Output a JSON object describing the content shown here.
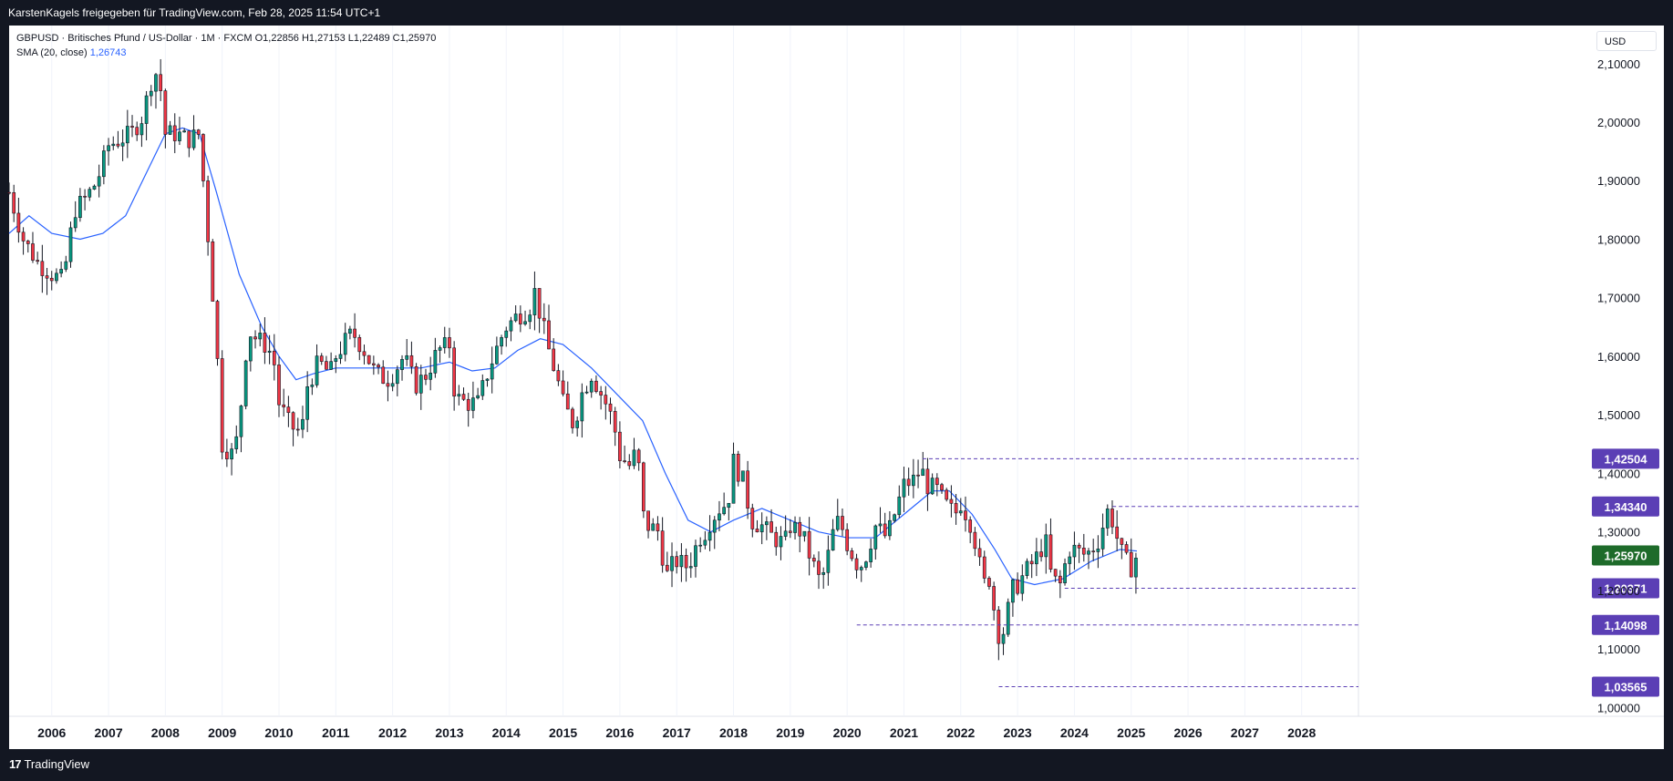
{
  "header": {
    "title": "KarstenKagels freigegeben für TradingView.com, Feb 28, 2025 11:54 UTC+1"
  },
  "legend": {
    "line1": "GBPUSD · Britisches Pfund / US-Dollar · 1M · FXCM  O1,22856  H1,27153  L1,22489  C1,25970",
    "sma_label": "SMA (20, close)",
    "sma_value": "1,26743"
  },
  "currency_label": "USD",
  "footer": {
    "logo_text": "TradingView",
    "logo_mark": "17"
  },
  "colors": {
    "up": "#089981",
    "down": "#f23645",
    "sma": "#2962ff",
    "level": "#5b3fb5",
    "last": "#1e6b2a"
  },
  "chart_data": {
    "type": "candlestick",
    "symbol": "GBPUSD",
    "interval": "1M",
    "ylim": [
      0.985,
      2.165
    ],
    "xlim": [
      2005.25,
      2029.0
    ],
    "y_ticks": [
      "2,10000",
      "2,00000",
      "1,90000",
      "1,80000",
      "1,70000",
      "1,60000",
      "1,50000",
      "1,40000",
      "1,30000",
      "1,20000",
      "1,10000",
      "1,00000"
    ],
    "x_ticks": [
      "2006",
      "2007",
      "2008",
      "2009",
      "2010",
      "2011",
      "2012",
      "2013",
      "2014",
      "2015",
      "2016",
      "2017",
      "2018",
      "2019",
      "2020",
      "2021",
      "2022",
      "2023",
      "2024",
      "2025",
      "2026",
      "2027",
      "2028"
    ],
    "last_price": "1,25970",
    "levels": [
      {
        "value": 1.42504,
        "label": "1,42504",
        "from": 2021.33
      },
      {
        "value": 1.3434,
        "label": "1,34340",
        "from": 2024.67
      },
      {
        "value": 1.20371,
        "label": "1,20371",
        "from": 2023.83
      },
      {
        "value": 1.14098,
        "label": "1,14098",
        "from": 2020.17
      },
      {
        "value": 1.03565,
        "label": "1,03565",
        "from": 2022.67
      }
    ],
    "closes": [
      [
        2005.25,
        1.88
      ],
      [
        2005.5,
        1.8
      ],
      [
        2005.75,
        1.76
      ],
      [
        2006.0,
        1.74
      ],
      [
        2006.2,
        1.73
      ],
      [
        2006.4,
        1.85
      ],
      [
        2006.6,
        1.87
      ],
      [
        2006.8,
        1.9
      ],
      [
        2007.0,
        1.96
      ],
      [
        2007.2,
        1.97
      ],
      [
        2007.4,
        1.98
      ],
      [
        2007.6,
        2.01
      ],
      [
        2007.8,
        2.09
      ],
      [
        2007.9,
        2.07
      ],
      [
        2008.0,
        1.98
      ],
      [
        2008.2,
        1.98
      ],
      [
        2008.4,
        1.97
      ],
      [
        2008.6,
        1.98
      ],
      [
        2008.7,
        1.86
      ],
      [
        2008.8,
        1.75
      ],
      [
        2008.9,
        1.62
      ],
      [
        2009.0,
        1.45
      ],
      [
        2009.2,
        1.43
      ],
      [
        2009.3,
        1.48
      ],
      [
        2009.4,
        1.6
      ],
      [
        2009.5,
        1.64
      ],
      [
        2009.6,
        1.63
      ],
      [
        2009.75,
        1.62
      ],
      [
        2009.9,
        1.6
      ],
      [
        2010.0,
        1.52
      ],
      [
        2010.2,
        1.48
      ],
      [
        2010.4,
        1.47
      ],
      [
        2010.5,
        1.55
      ],
      [
        2010.7,
        1.59
      ],
      [
        2010.9,
        1.57
      ],
      [
        2011.0,
        1.6
      ],
      [
        2011.2,
        1.63
      ],
      [
        2011.3,
        1.64
      ],
      [
        2011.5,
        1.61
      ],
      [
        2011.7,
        1.57
      ],
      [
        2011.9,
        1.56
      ],
      [
        2012.0,
        1.57
      ],
      [
        2012.2,
        1.6
      ],
      [
        2012.4,
        1.55
      ],
      [
        2012.6,
        1.57
      ],
      [
        2012.8,
        1.61
      ],
      [
        2013.0,
        1.62
      ],
      [
        2013.1,
        1.53
      ],
      [
        2013.3,
        1.52
      ],
      [
        2013.5,
        1.52
      ],
      [
        2013.7,
        1.58
      ],
      [
        2013.9,
        1.63
      ],
      [
        2014.0,
        1.65
      ],
      [
        2014.2,
        1.67
      ],
      [
        2014.4,
        1.68
      ],
      [
        2014.5,
        1.71
      ],
      [
        2014.6,
        1.67
      ],
      [
        2014.75,
        1.61
      ],
      [
        2014.9,
        1.56
      ],
      [
        2015.0,
        1.52
      ],
      [
        2015.2,
        1.48
      ],
      [
        2015.3,
        1.53
      ],
      [
        2015.5,
        1.57
      ],
      [
        2015.6,
        1.55
      ],
      [
        2015.8,
        1.51
      ],
      [
        2015.9,
        1.48
      ],
      [
        2016.0,
        1.43
      ],
      [
        2016.2,
        1.41
      ],
      [
        2016.3,
        1.45
      ],
      [
        2016.4,
        1.33
      ],
      [
        2016.5,
        1.31
      ],
      [
        2016.7,
        1.3
      ],
      [
        2016.8,
        1.22
      ],
      [
        2016.9,
        1.24
      ],
      [
        2017.0,
        1.25
      ],
      [
        2017.2,
        1.24
      ],
      [
        2017.4,
        1.29
      ],
      [
        2017.5,
        1.3
      ],
      [
        2017.6,
        1.32
      ],
      [
        2017.75,
        1.34
      ],
      [
        2017.9,
        1.35
      ],
      [
        2018.0,
        1.42
      ],
      [
        2018.2,
        1.38
      ],
      [
        2018.3,
        1.32
      ],
      [
        2018.5,
        1.31
      ],
      [
        2018.7,
        1.29
      ],
      [
        2018.9,
        1.28
      ],
      [
        2019.0,
        1.31
      ],
      [
        2019.2,
        1.3
      ],
      [
        2019.3,
        1.27
      ],
      [
        2019.5,
        1.22
      ],
      [
        2019.6,
        1.23
      ],
      [
        2019.8,
        1.32
      ],
      [
        2019.9,
        1.31
      ],
      [
        2020.0,
        1.28
      ],
      [
        2020.2,
        1.24
      ],
      [
        2020.3,
        1.25
      ],
      [
        2020.5,
        1.31
      ],
      [
        2020.7,
        1.29
      ],
      [
        2020.9,
        1.35
      ],
      [
        2021.0,
        1.38
      ],
      [
        2021.2,
        1.39
      ],
      [
        2021.3,
        1.41
      ],
      [
        2021.4,
        1.38
      ],
      [
        2021.6,
        1.37
      ],
      [
        2021.7,
        1.35
      ],
      [
        2021.9,
        1.33
      ],
      [
        2022.0,
        1.35
      ],
      [
        2022.2,
        1.31
      ],
      [
        2022.3,
        1.26
      ],
      [
        2022.4,
        1.21
      ],
      [
        2022.5,
        1.22
      ],
      [
        2022.6,
        1.16
      ],
      [
        2022.7,
        1.11
      ],
      [
        2022.8,
        1.15
      ],
      [
        2022.9,
        1.2
      ],
      [
        2023.0,
        1.21
      ],
      [
        2023.2,
        1.24
      ],
      [
        2023.3,
        1.25
      ],
      [
        2023.4,
        1.27
      ],
      [
        2023.5,
        1.28
      ],
      [
        2023.6,
        1.22
      ],
      [
        2023.75,
        1.21
      ],
      [
        2023.9,
        1.27
      ],
      [
        2024.0,
        1.27
      ],
      [
        2024.2,
        1.26
      ],
      [
        2024.3,
        1.27
      ],
      [
        2024.4,
        1.28
      ],
      [
        2024.5,
        1.31
      ],
      [
        2024.6,
        1.34
      ],
      [
        2024.7,
        1.31
      ],
      [
        2024.8,
        1.27
      ],
      [
        2024.9,
        1.25
      ],
      [
        2025.0,
        1.24
      ],
      [
        2025.1,
        1.2597
      ]
    ],
    "sma": [
      [
        2005.25,
        1.81
      ],
      [
        2005.6,
        1.84
      ],
      [
        2006.0,
        1.81
      ],
      [
        2006.5,
        1.8
      ],
      [
        2006.9,
        1.81
      ],
      [
        2007.3,
        1.84
      ],
      [
        2007.7,
        1.92
      ],
      [
        2008.0,
        1.98
      ],
      [
        2008.3,
        1.99
      ],
      [
        2008.6,
        1.98
      ],
      [
        2008.9,
        1.88
      ],
      [
        2009.3,
        1.74
      ],
      [
        2009.7,
        1.65
      ],
      [
        2010.0,
        1.6
      ],
      [
        2010.3,
        1.56
      ],
      [
        2010.6,
        1.57
      ],
      [
        2011.0,
        1.58
      ],
      [
        2011.5,
        1.58
      ],
      [
        2012.0,
        1.58
      ],
      [
        2012.5,
        1.58
      ],
      [
        2013.0,
        1.59
      ],
      [
        2013.4,
        1.575
      ],
      [
        2013.8,
        1.58
      ],
      [
        2014.2,
        1.61
      ],
      [
        2014.6,
        1.63
      ],
      [
        2015.0,
        1.62
      ],
      [
        2015.5,
        1.58
      ],
      [
        2016.0,
        1.53
      ],
      [
        2016.4,
        1.49
      ],
      [
        2016.8,
        1.4
      ],
      [
        2017.2,
        1.32
      ],
      [
        2017.6,
        1.3
      ],
      [
        2018.0,
        1.32
      ],
      [
        2018.5,
        1.34
      ],
      [
        2019.0,
        1.32
      ],
      [
        2019.5,
        1.3
      ],
      [
        2020.0,
        1.29
      ],
      [
        2020.5,
        1.29
      ],
      [
        2021.0,
        1.33
      ],
      [
        2021.5,
        1.37
      ],
      [
        2021.8,
        1.37
      ],
      [
        2022.2,
        1.33
      ],
      [
        2022.6,
        1.27
      ],
      [
        2022.9,
        1.22
      ],
      [
        2023.3,
        1.21
      ],
      [
        2023.8,
        1.22
      ],
      [
        2024.3,
        1.25
      ],
      [
        2024.8,
        1.27
      ],
      [
        2025.1,
        1.2674
      ]
    ]
  }
}
